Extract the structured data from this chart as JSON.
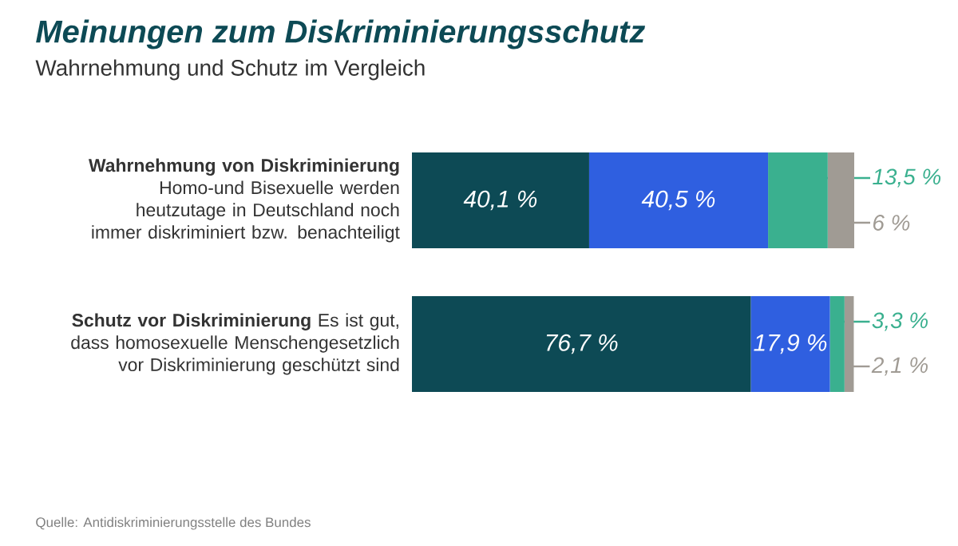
{
  "chart_data": {
    "type": "bar",
    "orientation": "horizontal",
    "stacked": true,
    "title": "Meinungen zum Diskriminierungsschutz",
    "subtitle": "Wahrnehmung und Schutz im Vergleich",
    "categories": [
      "**Wahrnehmung von Diskriminierung** Homo-und Bisexuelle werden heutzutage in Deutschland noch immer diskriminiert bzw. benachteiligt",
      "**Schutz vor Diskriminierung** Es ist gut, dass homosexuelle Menschengesetzlich vor Diskriminierung geschützt sind"
    ],
    "series": [
      {
        "color": "#0d4a55",
        "values": [
          40.1,
          76.7
        ],
        "value_labels": [
          "40,1 %",
          "76,7 %"
        ]
      },
      {
        "color": "#2f5fe0",
        "values": [
          40.5,
          17.9
        ],
        "value_labels": [
          "40,5 %",
          "17,9 %"
        ]
      },
      {
        "color": "#3ab08f",
        "values": [
          13.5,
          3.3
        ],
        "value_labels": [
          "13,5 %",
          "3,3 %"
        ]
      },
      {
        "color": "#a09b94",
        "values": [
          6,
          2.1
        ],
        "value_labels": [
          "6 %",
          "2,1 %"
        ]
      }
    ],
    "annotations": [
      "Quelle: Antidiskriminierungsstelle des Bundes"
    ]
  }
}
